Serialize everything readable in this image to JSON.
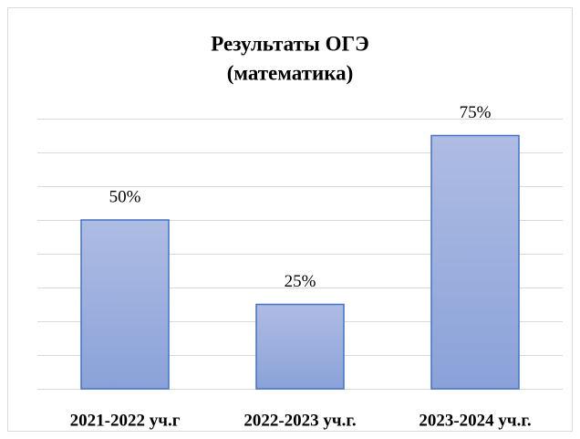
{
  "chart_data": {
    "type": "bar",
    "title": [
      "Результаты ОГЭ",
      "(математика)"
    ],
    "categories": [
      "2021-2022 уч.г",
      "2022-2023 уч.г.",
      "2023-2024 уч.г."
    ],
    "values": [
      50,
      25,
      75
    ],
    "value_labels": [
      "50%",
      "25%",
      "75%"
    ],
    "color": "#4472c4",
    "ylim": [
      0,
      80
    ],
    "yticks": [
      0,
      10,
      20,
      30,
      40,
      50,
      60,
      70,
      80
    ],
    "grid": true
  }
}
